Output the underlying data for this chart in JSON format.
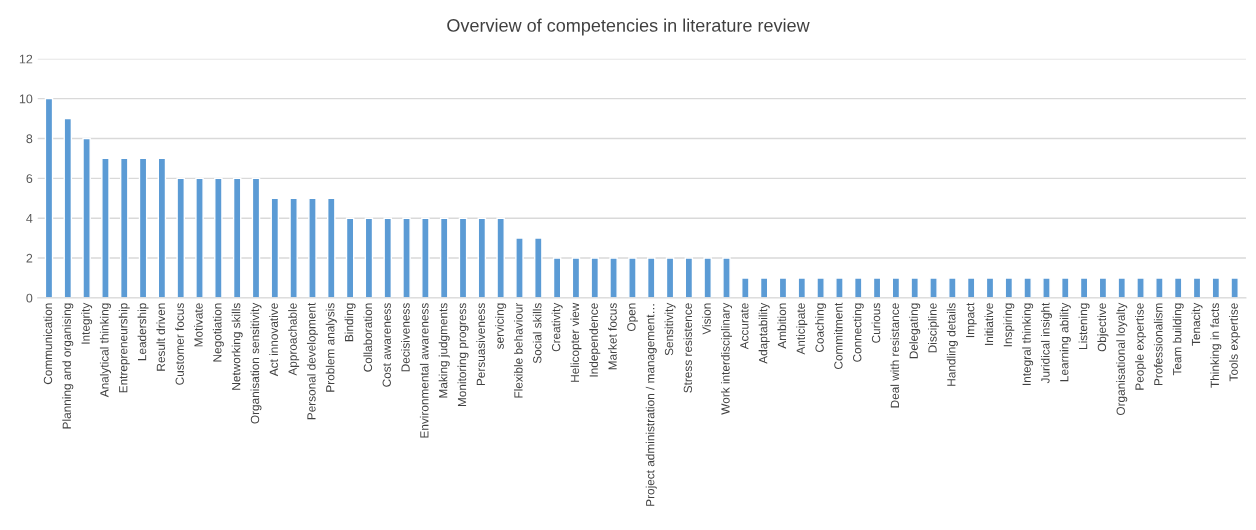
{
  "chart_data": {
    "type": "bar",
    "title": "Overview of competencies in literature review",
    "categories": [
      "Communication",
      "Planning and organising",
      "Integrity",
      "Analytical thinking",
      "Entrepreneurship",
      "Leadership",
      "Result driven",
      "Customer focus",
      "Motivate",
      "Negotiation",
      "Networking skills",
      "Organisation sensitivity",
      "Act innovative",
      "Approachable",
      "Personal development",
      "Problem analysis",
      "Binding",
      "Collaboration",
      "Cost awareness",
      "Decisiveness",
      "Environmental awareness",
      "Making judgments",
      "Monitoring progress",
      "Persuasiveness",
      "servicing",
      "Flexible behaviour",
      "Social skills",
      "Creativity",
      "Helicopter view",
      "Independence",
      "Market focus",
      "Open",
      "Project administration / management…",
      "Sensitivity",
      "Stress resistence",
      "Vision",
      "Work interdisciplinary",
      "Accurate",
      "Adaptability",
      "Ambition",
      "Anticipate",
      "Coaching",
      "Commitment",
      "Connecting",
      "Curious",
      "Deal with resistance",
      "Delegating",
      "Discipline",
      "Handling details",
      "Impact",
      "Initiative",
      "Inspiring",
      "Integral thinking",
      "Juridical insight",
      "Learning ability",
      "Listening",
      "Objective",
      "Organisational loyalty",
      "People expertise",
      "Professionalism",
      "Team building",
      "Tenacity",
      "Thinking in facts",
      "Tools expertise"
    ],
    "values": [
      10,
      9,
      8,
      7,
      7,
      7,
      7,
      6,
      6,
      6,
      6,
      6,
      5,
      5,
      5,
      5,
      4,
      4,
      4,
      4,
      4,
      4,
      4,
      4,
      4,
      3,
      3,
      2,
      2,
      2,
      2,
      2,
      2,
      2,
      2,
      2,
      2,
      1,
      1,
      1,
      1,
      1,
      1,
      1,
      1,
      1,
      1,
      1,
      1,
      1,
      1,
      1,
      1,
      1,
      1,
      1,
      1,
      1,
      1,
      1,
      1,
      1,
      1,
      1
    ],
    "color": "#5b9bd5",
    "ylim": [
      0,
      12
    ],
    "yticks": [
      0,
      2,
      4,
      6,
      8,
      10,
      12
    ],
    "grid": "y",
    "legend": false
  }
}
